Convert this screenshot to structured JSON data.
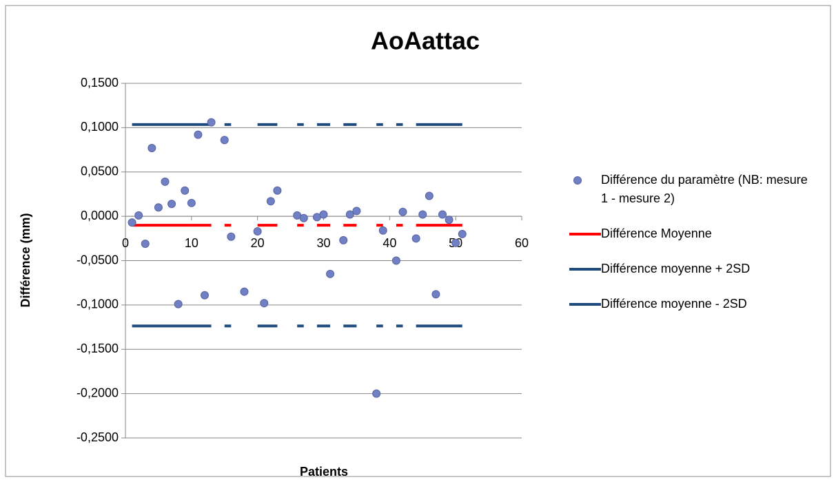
{
  "chart_data": {
    "type": "scatter",
    "title": "AoAattac",
    "x_label": "Patients",
    "y_label": "Différence (mm)",
    "x": [
      1,
      2,
      3,
      4,
      5,
      6,
      7,
      8,
      9,
      10,
      11,
      12,
      13,
      14,
      15,
      16,
      17,
      18,
      19,
      20,
      21,
      22,
      23,
      24,
      25,
      26,
      27,
      28,
      29,
      30,
      31,
      32,
      33,
      34,
      35,
      36,
      37,
      38,
      39,
      40,
      41,
      42,
      43,
      44,
      45,
      46,
      47,
      48,
      49,
      50,
      51
    ],
    "series": [
      {
        "name": "Différence du paramètre (NB: mesure 1 - mesure 2)",
        "style": "marker",
        "color": "#6f80c4",
        "values": [
          -0.007,
          0.001,
          -0.031,
          0.077,
          0.01,
          0.039,
          0.014,
          -0.099,
          0.029,
          0.015,
          0.092,
          -0.089,
          0.106,
          null,
          0.086,
          -0.023,
          null,
          -0.085,
          null,
          -0.017,
          -0.098,
          0.017,
          0.029,
          null,
          null,
          0.001,
          -0.002,
          null,
          -0.001,
          0.002,
          -0.065,
          null,
          -0.027,
          0.002,
          0.006,
          null,
          null,
          -0.2,
          -0.016,
          null,
          -0.05,
          0.005,
          null,
          -0.025,
          0.002,
          0.023,
          -0.088,
          0.002,
          -0.004,
          -0.03,
          -0.02
        ]
      },
      {
        "name": "Différence Moyenne",
        "style": "line",
        "color": "#ff0000",
        "values": [
          -0.0101,
          -0.0101,
          -0.0101,
          -0.0101,
          -0.0101,
          -0.0101,
          -0.0101,
          -0.0101,
          -0.0101,
          -0.0101,
          -0.0101,
          -0.0101,
          -0.0101,
          null,
          -0.0101,
          -0.0101,
          null,
          -0.0101,
          null,
          -0.0101,
          -0.0101,
          -0.0101,
          -0.0101,
          null,
          null,
          -0.0101,
          -0.0101,
          null,
          -0.0101,
          -0.0101,
          -0.0101,
          null,
          -0.0101,
          -0.0101,
          -0.0101,
          null,
          null,
          -0.0101,
          -0.0101,
          null,
          -0.0101,
          -0.0101,
          null,
          -0.0101,
          -0.0101,
          -0.0101,
          -0.0101,
          -0.0101,
          -0.0101,
          -0.0101,
          -0.0101
        ]
      },
      {
        "name": "Différence moyenne + 2SD",
        "style": "line",
        "color": "#1f4a7e",
        "values": [
          0.1035,
          0.1035,
          0.1035,
          0.1035,
          0.1035,
          0.1035,
          0.1035,
          0.1035,
          0.1035,
          0.1035,
          0.1035,
          0.1035,
          0.1035,
          null,
          0.1035,
          0.1035,
          null,
          0.1035,
          null,
          0.1035,
          0.1035,
          0.1035,
          0.1035,
          null,
          null,
          0.1035,
          0.1035,
          null,
          0.1035,
          0.1035,
          0.1035,
          null,
          0.1035,
          0.1035,
          0.1035,
          null,
          null,
          0.1035,
          0.1035,
          null,
          0.1035,
          0.1035,
          null,
          0.1035,
          0.1035,
          0.1035,
          0.1035,
          0.1035,
          0.1035,
          0.1035,
          0.1035
        ]
      },
      {
        "name": "Différence moyenne - 2SD",
        "style": "line",
        "color": "#1f4a7e",
        "values": [
          -0.1237,
          -0.1237,
          -0.1237,
          -0.1237,
          -0.1237,
          -0.1237,
          -0.1237,
          -0.1237,
          -0.1237,
          -0.1237,
          -0.1237,
          -0.1237,
          -0.1237,
          null,
          -0.1237,
          -0.1237,
          null,
          -0.1237,
          null,
          -0.1237,
          -0.1237,
          -0.1237,
          -0.1237,
          null,
          null,
          -0.1237,
          -0.1237,
          null,
          -0.1237,
          -0.1237,
          -0.1237,
          null,
          -0.1237,
          -0.1237,
          -0.1237,
          null,
          null,
          -0.1237,
          -0.1237,
          null,
          -0.1237,
          -0.1237,
          null,
          -0.1237,
          -0.1237,
          -0.1237,
          -0.1237,
          -0.1237,
          -0.1237,
          -0.1237,
          -0.1237
        ]
      }
    ],
    "xlim": [
      0,
      60
    ],
    "xticks": [
      0,
      10,
      20,
      30,
      40,
      50,
      60
    ],
    "ylim": [
      -0.25,
      0.15
    ],
    "yticks": [
      {
        "value": -0.25,
        "label": "-0,2500"
      },
      {
        "value": -0.2,
        "label": "-0,2000"
      },
      {
        "value": -0.15,
        "label": "-0,1500"
      },
      {
        "value": -0.1,
        "label": "-0,1000"
      },
      {
        "value": -0.05,
        "label": "-0,0500"
      },
      {
        "value": 0,
        "label": "0,0000"
      },
      {
        "value": 0.05,
        "label": "0,0500"
      },
      {
        "value": 0.1,
        "label": "0,1000"
      },
      {
        "value": 0.15,
        "label": "0,1500"
      }
    ],
    "grid": true,
    "legend": "right"
  }
}
